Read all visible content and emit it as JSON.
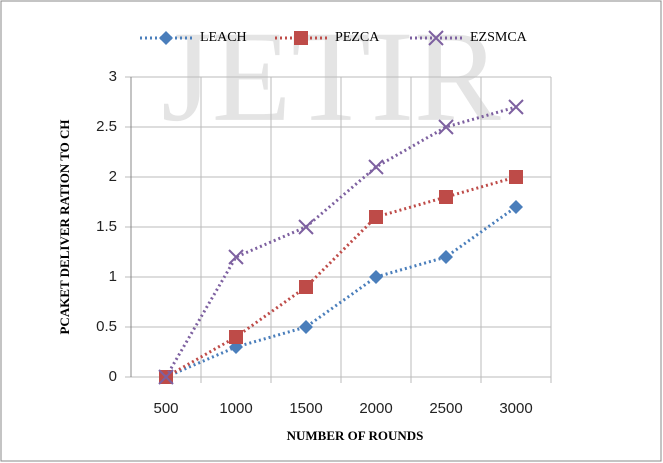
{
  "chart_data": {
    "type": "line",
    "watermark": "JETIR",
    "x_label": "NUMBER OF ROUNDS",
    "y_label": "PCAKET DELIVER RATION TO CH",
    "x": [
      500,
      1000,
      1500,
      2000,
      2500,
      3000
    ],
    "xlim": [
      250,
      3250
    ],
    "xticks": [
      500,
      1000,
      1500,
      2000,
      2500,
      3000
    ],
    "ylim": [
      0,
      3
    ],
    "yticks": [
      0,
      0.5,
      1,
      1.5,
      2,
      2.5,
      3
    ],
    "grid": true,
    "legend": "top",
    "series": [
      {
        "name": "LEACH",
        "color": "#4a7ebb",
        "marker": "diamond",
        "values": [
          0,
          0.3,
          0.5,
          1.0,
          1.2,
          1.7
        ]
      },
      {
        "name": "PEZCA",
        "color": "#be4b48",
        "marker": "square",
        "values": [
          0,
          0.4,
          0.9,
          1.6,
          1.8,
          2.0
        ]
      },
      {
        "name": "EZSMCA",
        "color": "#7d60a0",
        "marker": "x",
        "values": [
          0,
          1.2,
          1.5,
          2.1,
          2.5,
          2.7
        ]
      }
    ]
  }
}
